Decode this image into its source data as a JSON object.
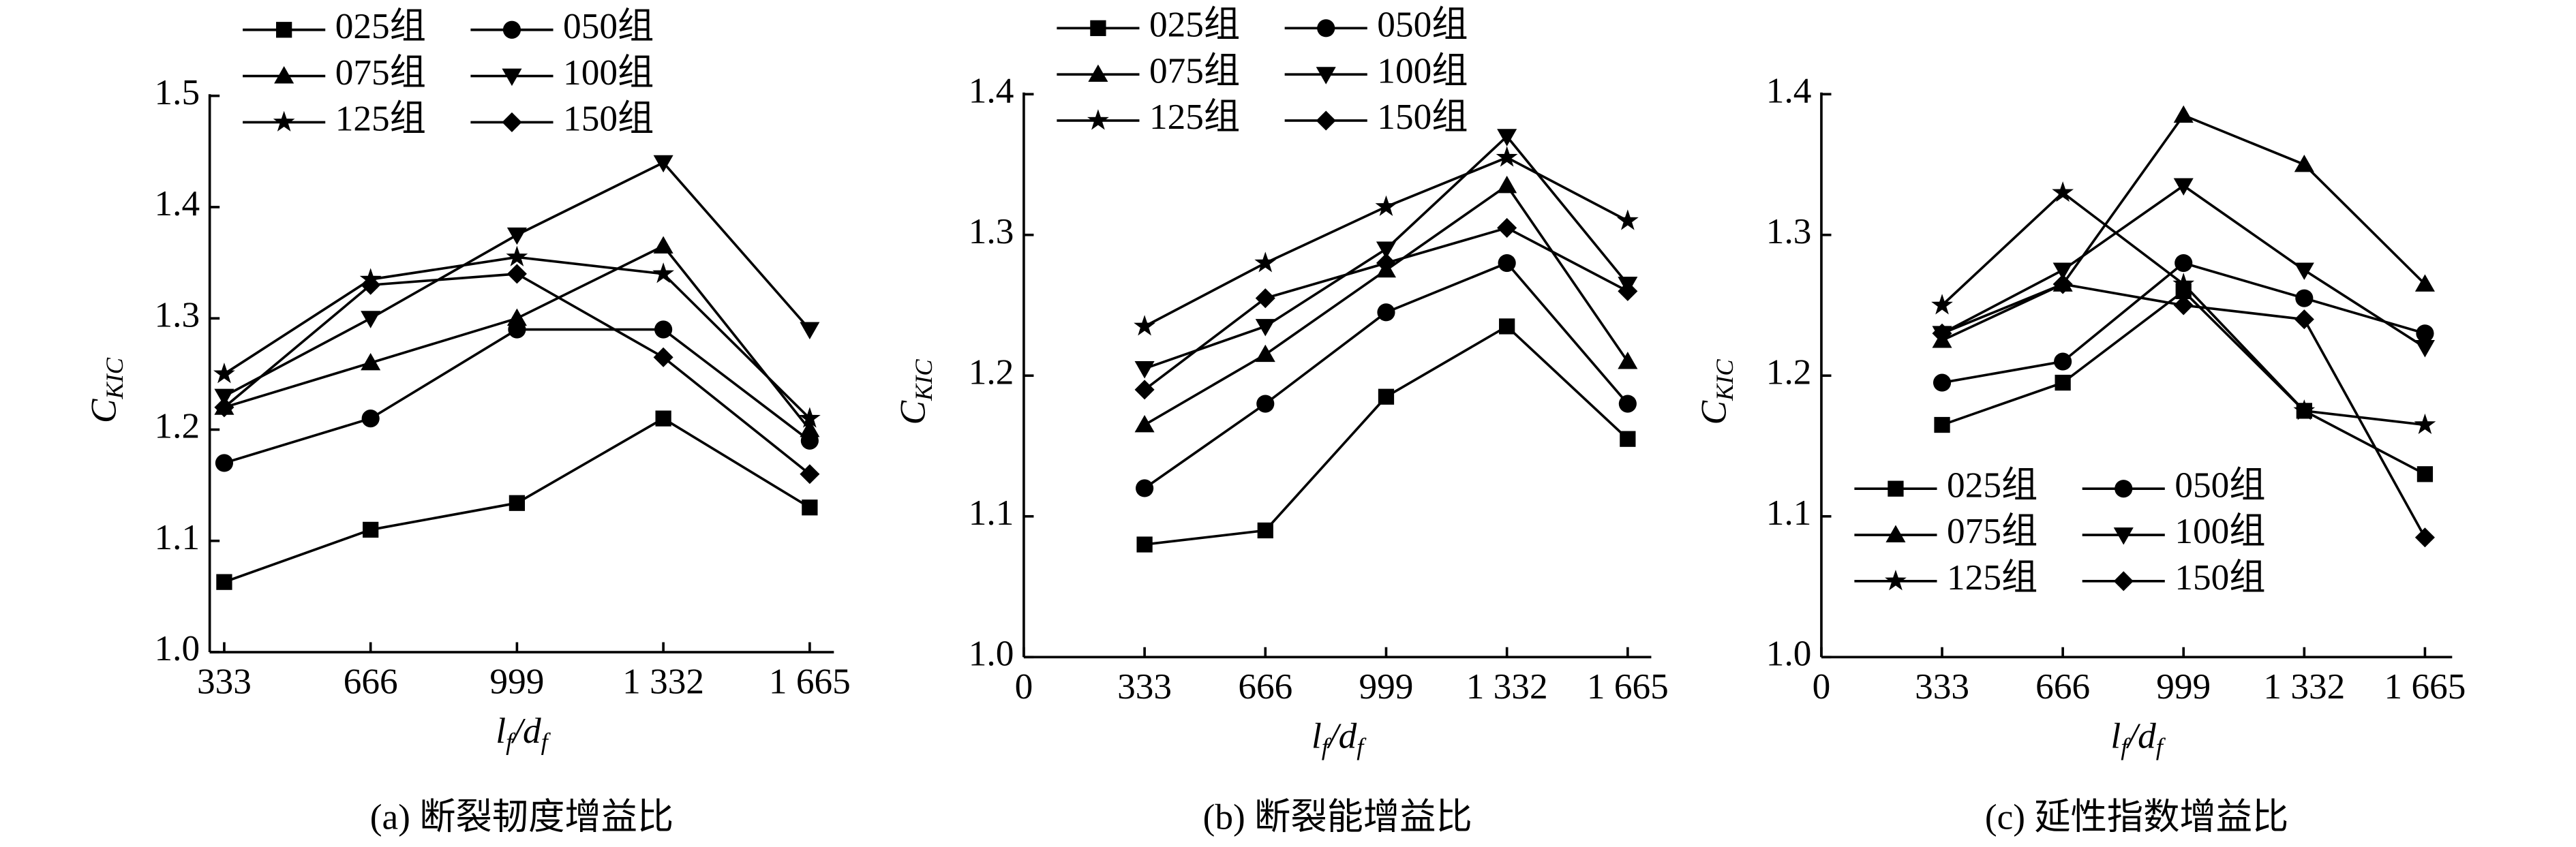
{
  "chart_data": [
    {
      "type": "line",
      "caption": "(a) 断裂韧度增益比",
      "y_label": {
        "text": "C",
        "sub": "KIC"
      },
      "x_label": [
        {
          "text": "l",
          "sub": "f"
        },
        {
          "text": "/d",
          "sub": "f"
        }
      ],
      "x": [
        333,
        666,
        999,
        1332,
        1665
      ],
      "xlim": [
        300,
        1720
      ],
      "xticks": [
        333,
        666,
        999,
        {
          "value": 1332,
          "label": "1 332"
        },
        {
          "value": 1665,
          "label": "1 665"
        }
      ],
      "ylim": [
        1,
        1.5
      ],
      "yticks": [
        {
          "value": 1,
          "label": "1.0"
        },
        1.1,
        1.2,
        1.3,
        1.4,
        1.5
      ],
      "legend": "upper left outside",
      "series": [
        {
          "name": "025组",
          "color": "#000000",
          "marker": "square",
          "values": [
            1.063,
            1.11,
            1.134,
            1.21,
            1.13
          ]
        },
        {
          "name": "050组",
          "color": "#000000",
          "marker": "circle",
          "values": [
            1.17,
            1.21,
            1.29,
            1.29,
            1.19
          ]
        },
        {
          "name": "075组",
          "color": "#000000",
          "marker": "triangle-up",
          "values": [
            1.22,
            1.26,
            1.3,
            1.365,
            1.2
          ]
        },
        {
          "name": "100组",
          "color": "#000000",
          "marker": "triangle-down",
          "values": [
            1.23,
            1.3,
            1.375,
            1.44,
            1.29
          ]
        },
        {
          "name": "125组",
          "color": "#000000",
          "marker": "star",
          "values": [
            1.25,
            1.335,
            1.355,
            1.34,
            1.21
          ]
        },
        {
          "name": "150组",
          "color": "#000000",
          "marker": "diamond",
          "values": [
            1.22,
            1.33,
            1.34,
            1.265,
            1.16
          ]
        }
      ]
    },
    {
      "type": "line",
      "caption": "(b) 断裂能增益比",
      "y_label": {
        "text": "C",
        "sub": "KIC"
      },
      "x_label": [
        {
          "text": "l",
          "sub": "f"
        },
        {
          "text": "/d",
          "sub": "f"
        }
      ],
      "x": [
        333,
        666,
        999,
        1332,
        1665
      ],
      "xlim": [
        0,
        1730
      ],
      "xticks": [
        0,
        333,
        666,
        999,
        {
          "value": 1332,
          "label": "1 332"
        },
        {
          "value": 1665,
          "label": "1 665"
        }
      ],
      "ylim": [
        1,
        1.4
      ],
      "yticks": [
        {
          "value": 1,
          "label": "1.0"
        },
        1.1,
        1.2,
        1.3,
        1.4
      ],
      "legend": "upper left",
      "series": [
        {
          "name": "025组",
          "color": "#000000",
          "marker": "square",
          "values": [
            1.08,
            1.09,
            1.185,
            1.235,
            1.155
          ]
        },
        {
          "name": "050组",
          "color": "#000000",
          "marker": "circle",
          "values": [
            1.12,
            1.18,
            1.245,
            1.28,
            1.18
          ]
        },
        {
          "name": "075组",
          "color": "#000000",
          "marker": "triangle-up",
          "values": [
            1.165,
            1.215,
            1.275,
            1.335,
            1.21
          ]
        },
        {
          "name": "100组",
          "color": "#000000",
          "marker": "triangle-down",
          "values": [
            1.205,
            1.235,
            1.29,
            1.37,
            1.265
          ]
        },
        {
          "name": "125组",
          "color": "#000000",
          "marker": "star",
          "values": [
            1.235,
            1.28,
            1.32,
            1.355,
            1.31
          ]
        },
        {
          "name": "150组",
          "color": "#000000",
          "marker": "diamond",
          "values": [
            1.19,
            1.255,
            1.28,
            1.305,
            1.26
          ]
        }
      ]
    },
    {
      "type": "line",
      "caption": "(c) 延性指数增益比",
      "y_label": {
        "text": "C",
        "sub": "KIC"
      },
      "x_label": [
        {
          "text": "l",
          "sub": "f"
        },
        {
          "text": "/d",
          "sub": "f"
        }
      ],
      "x": [
        333,
        666,
        999,
        1332,
        1665
      ],
      "xlim": [
        0,
        1740
      ],
      "xticks": [
        0,
        333,
        666,
        999,
        {
          "value": 1332,
          "label": "1 332"
        },
        {
          "value": 1665,
          "label": "1 665"
        }
      ],
      "ylim": [
        1,
        1.4
      ],
      "yticks": [
        {
          "value": 1,
          "label": "1.0"
        },
        1.1,
        1.2,
        1.3,
        1.4
      ],
      "legend": "lower left",
      "series": [
        {
          "name": "025组",
          "color": "#000000",
          "marker": "square",
          "values": [
            1.165,
            1.195,
            1.26,
            1.175,
            1.13
          ]
        },
        {
          "name": "050组",
          "color": "#000000",
          "marker": "circle",
          "values": [
            1.195,
            1.21,
            1.28,
            1.255,
            1.23
          ]
        },
        {
          "name": "075组",
          "color": "#000000",
          "marker": "triangle-up",
          "values": [
            1.225,
            1.265,
            1.385,
            1.35,
            1.265
          ]
        },
        {
          "name": "100组",
          "color": "#000000",
          "marker": "triangle-down",
          "values": [
            1.23,
            1.275,
            1.335,
            1.275,
            1.22
          ]
        },
        {
          "name": "125组",
          "color": "#000000",
          "marker": "star",
          "values": [
            1.25,
            1.33,
            1.265,
            1.175,
            1.165
          ]
        },
        {
          "name": "150组",
          "color": "#000000",
          "marker": "diamond",
          "values": [
            1.23,
            1.265,
            1.25,
            1.24,
            1.085
          ]
        }
      ]
    }
  ]
}
